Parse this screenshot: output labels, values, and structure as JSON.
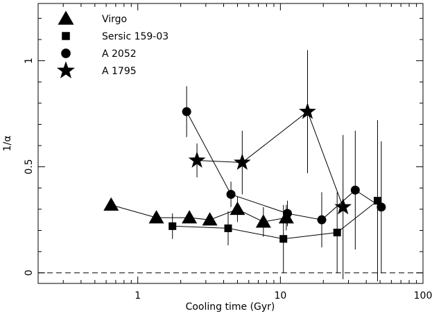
{
  "chart_data": {
    "type": "scatter",
    "xlabel": "Cooling time (Gyr)",
    "ylabel": "1/α",
    "xscale": "log",
    "xlim": [
      0.2,
      100
    ],
    "ylim": [
      -0.05,
      1.27
    ],
    "xticks": [
      {
        "value": 1,
        "label": "1"
      },
      {
        "value": 10,
        "label": "10"
      },
      {
        "value": 100,
        "label": "100"
      }
    ],
    "yticks": [
      {
        "value": 0,
        "label": "0"
      },
      {
        "value": 0.5,
        "label": "0.5"
      },
      {
        "value": 1,
        "label": "1"
      }
    ],
    "reference_line": {
      "y": 0,
      "style": "dashed"
    },
    "legend_position": "top-left",
    "series": [
      {
        "name": "Virgo",
        "marker": "triangle",
        "points": [
          {
            "x": 0.65,
            "y": 0.32
          },
          {
            "x": 1.35,
            "y": 0.26
          },
          {
            "x": 2.3,
            "y": 0.26
          },
          {
            "x": 3.2,
            "y": 0.25
          },
          {
            "x": 5.0,
            "y": 0.3,
            "err": 0.06
          },
          {
            "x": 7.6,
            "y": 0.24,
            "err": 0.07
          },
          {
            "x": 11.0,
            "y": 0.26,
            "err": 0.06
          }
        ]
      },
      {
        "name": "Sersic 159-03",
        "marker": "square",
        "points": [
          {
            "x": 1.75,
            "y": 0.22,
            "err": 0.06
          },
          {
            "x": 4.3,
            "y": 0.21,
            "err": 0.08
          },
          {
            "x": 10.5,
            "y": 0.16,
            "err": 0.16
          },
          {
            "x": 25.0,
            "y": 0.19,
            "err": 0.19
          },
          {
            "x": 48.0,
            "y": 0.34,
            "err": 0.38
          }
        ]
      },
      {
        "name": "A 2052",
        "marker": "circle",
        "points": [
          {
            "x": 2.2,
            "y": 0.76,
            "err": 0.12
          },
          {
            "x": 4.5,
            "y": 0.37,
            "err": 0.06
          },
          {
            "x": 11.2,
            "y": 0.28,
            "err": 0.06
          },
          {
            "x": 19.5,
            "y": 0.25,
            "err": 0.13
          },
          {
            "x": 33.5,
            "y": 0.39,
            "err": 0.28
          },
          {
            "x": 51.0,
            "y": 0.31,
            "err": 0.31
          }
        ]
      },
      {
        "name": "A 1795",
        "marker": "star",
        "points": [
          {
            "x": 2.6,
            "y": 0.53,
            "err": 0.08
          },
          {
            "x": 5.4,
            "y": 0.52,
            "err": 0.15
          },
          {
            "x": 15.5,
            "y": 0.76,
            "err": 0.29
          },
          {
            "x": 27.5,
            "y": 0.31,
            "err": 0.34
          }
        ]
      }
    ]
  }
}
